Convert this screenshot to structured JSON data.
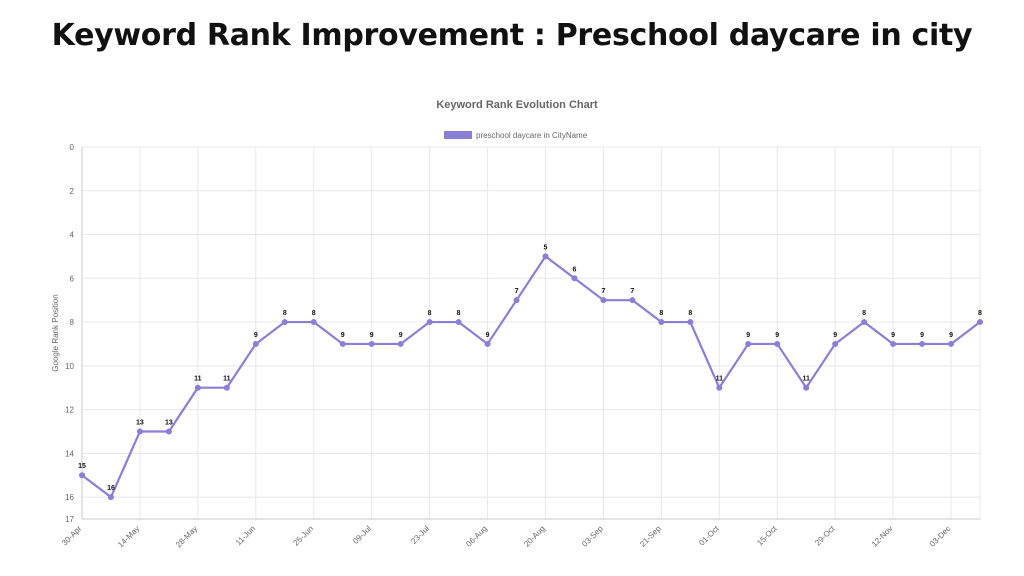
{
  "page": {
    "title": "Keyword Rank Improvement : Preschool daycare in city"
  },
  "chart_data": {
    "type": "line",
    "title": "Keyword Rank Evolution Chart",
    "ylabel": "Google Rank Position",
    "xlabel": "",
    "ylim": [
      0,
      17
    ],
    "y_reversed": true,
    "y_ticks": [
      0,
      2,
      4,
      6,
      8,
      10,
      12,
      14,
      16,
      17
    ],
    "grid": true,
    "legend_position": "top",
    "x_tick_labels": [
      "30-Apr",
      "14-May",
      "28-May",
      "11-Jun",
      "25-Jun",
      "09-Jul",
      "23-Jul",
      "06-Aug",
      "20-Aug",
      "03-Sep",
      "21-Sep",
      "01-Oct",
      "15-Oct",
      "29-Oct",
      "12-Nov",
      "03-Dec"
    ],
    "series": [
      {
        "name": "preschool daycare in CityName",
        "color": "#8a7fd6",
        "values": [
          15,
          16,
          13,
          13,
          11,
          11,
          9,
          8,
          8,
          9,
          9,
          9,
          8,
          8,
          9,
          7,
          5,
          6,
          7,
          7,
          8,
          8,
          11,
          9,
          9,
          11,
          9,
          8,
          9,
          9,
          9,
          8
        ],
        "data_labels": [
          "15",
          "16",
          "13",
          "13",
          "11",
          "11",
          "9",
          "8",
          "8",
          "9",
          "9",
          "9",
          "8",
          "8",
          "9",
          "7",
          "5",
          "6",
          "7",
          "7",
          "8",
          "8",
          "11",
          "9",
          "9",
          "11",
          "9",
          "8",
          "9",
          "9",
          "9",
          "8"
        ]
      }
    ]
  }
}
